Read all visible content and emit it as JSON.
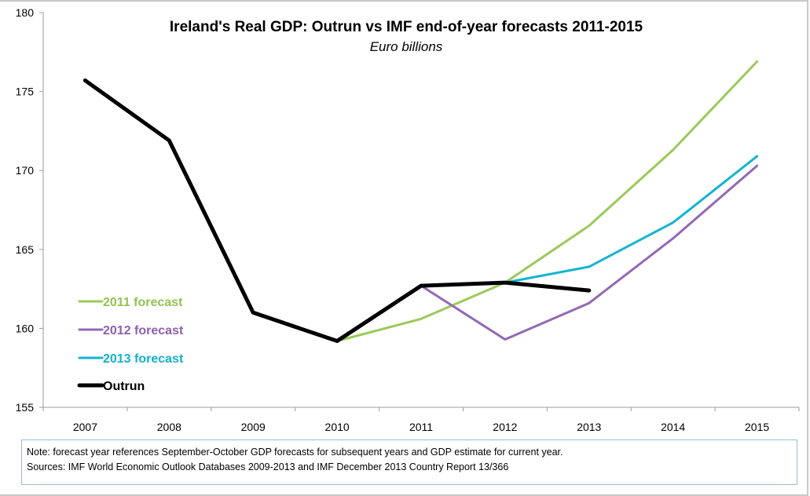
{
  "chart_data": {
    "type": "line",
    "title": "Ireland's Real GDP: Outrun vs IMF end-of-year forecasts 2011-2015",
    "subtitle": "Euro billions",
    "xlabel": "",
    "ylabel": "",
    "categories": [
      "2007",
      "2008",
      "2009",
      "2010",
      "2011",
      "2012",
      "2013",
      "2014",
      "2015"
    ],
    "ylim": [
      155,
      180
    ],
    "yticks": [
      155,
      160,
      165,
      170,
      175,
      180
    ],
    "grid": false,
    "legend_position": "bottom-left inside",
    "series": [
      {
        "name": "2011 forecast",
        "color": "#9bc95a",
        "text_color": "#92c353",
        "values": [
          null,
          null,
          null,
          159.2,
          160.6,
          162.9,
          166.5,
          171.3,
          176.9
        ]
      },
      {
        "name": "2012 forecast",
        "color": "#9468b4",
        "text_color": "#8e5fae",
        "values": [
          null,
          null,
          null,
          null,
          162.7,
          159.3,
          161.6,
          165.7,
          170.3
        ]
      },
      {
        "name": "2013 forecast",
        "color": "#14b4d0",
        "text_color": "#14b0cc",
        "values": [
          null,
          null,
          null,
          null,
          null,
          162.9,
          163.9,
          166.7,
          170.9
        ]
      },
      {
        "name": "Outrun",
        "color": "#000000",
        "text_color": "#000000",
        "values": [
          175.7,
          171.9,
          161.0,
          159.2,
          162.7,
          162.9,
          162.4,
          null,
          null
        ]
      }
    ]
  },
  "note": {
    "line1": "Note: forecast year references September-October GDP forecasts for subsequent years and GDP estimate for current year.",
    "line2": "Sources: IMF World Economic Outlook Databases 2009-2013 and IMF December 2013 Country Report 13/366"
  }
}
